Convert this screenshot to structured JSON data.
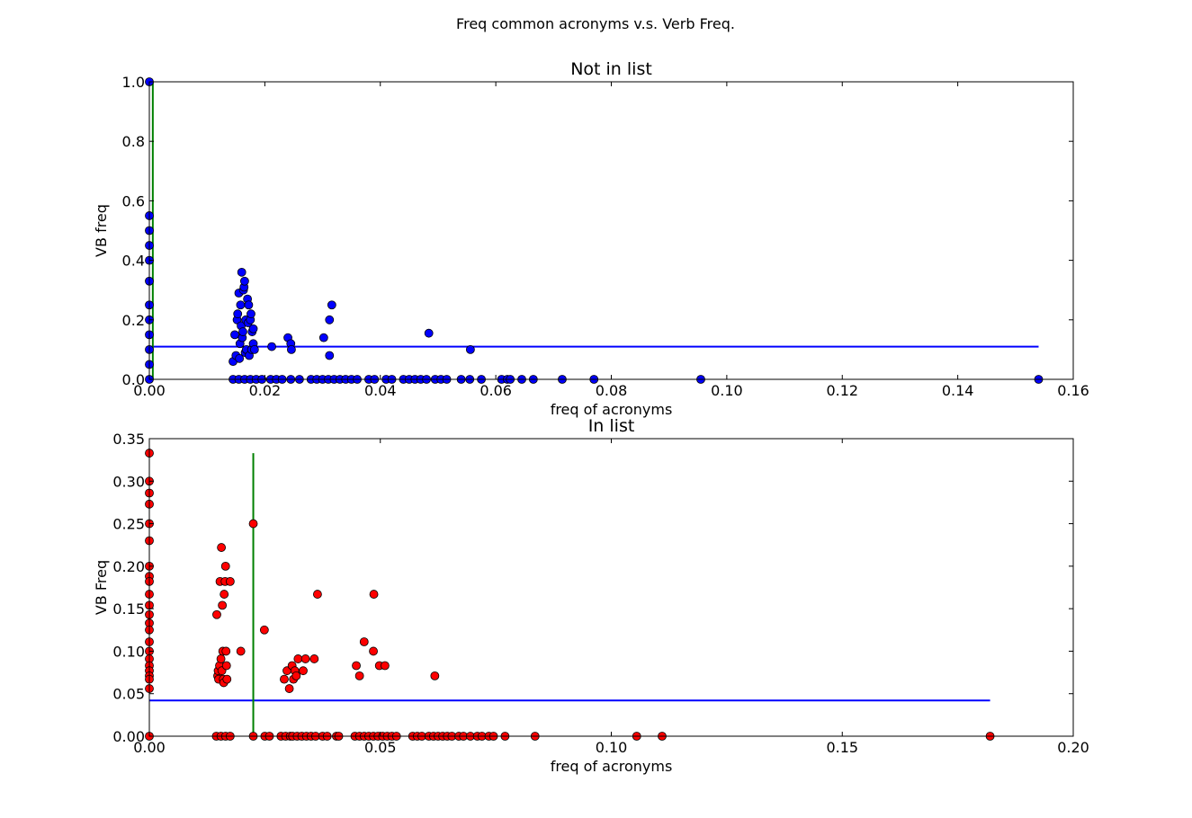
{
  "figure": {
    "suptitle": "Freq common acronyms v.s. Verb Freq."
  },
  "chart_data": [
    {
      "type": "scatter",
      "title": "Not in list",
      "xlabel": "freq of acronyms",
      "ylabel": "VB freq",
      "xlim": [
        0,
        0.16
      ],
      "ylim": [
        0,
        1.0
      ],
      "xticks": [
        "0.00",
        "0.02",
        "0.04",
        "0.06",
        "0.08",
        "0.10",
        "0.12",
        "0.14",
        "0.16"
      ],
      "yticks": [
        "0.0",
        "0.2",
        "0.4",
        "0.6",
        "0.8",
        "1.0"
      ],
      "grid": false,
      "marker_color": "#0000ff",
      "mean_line": {
        "color": "#0000ff",
        "y": 0.11,
        "x": [
          0.0,
          0.154
        ]
      },
      "vertical_line": {
        "color": "#008000",
        "x": 0.0006,
        "y": [
          0.0,
          1.0
        ]
      },
      "points": [
        [
          0.0,
          1.0
        ],
        [
          0.0,
          0.55
        ],
        [
          0.0,
          0.5
        ],
        [
          0.0,
          0.45
        ],
        [
          0.0,
          0.4
        ],
        [
          0.0,
          0.33
        ],
        [
          0.0,
          0.25
        ],
        [
          0.0,
          0.2
        ],
        [
          0.0,
          0.15
        ],
        [
          0.0,
          0.1
        ],
        [
          0.0,
          0.05
        ],
        [
          0.0,
          0.0
        ],
        [
          0.0145,
          0.06
        ],
        [
          0.0148,
          0.15
        ],
        [
          0.015,
          0.08
        ],
        [
          0.0152,
          0.2
        ],
        [
          0.0153,
          0.22
        ],
        [
          0.0155,
          0.29
        ],
        [
          0.0156,
          0.07
        ],
        [
          0.0157,
          0.12
        ],
        [
          0.0158,
          0.25
        ],
        [
          0.0159,
          0.18
        ],
        [
          0.016,
          0.36
        ],
        [
          0.0161,
          0.14
        ],
        [
          0.0162,
          0.16
        ],
        [
          0.0163,
          0.3
        ],
        [
          0.0164,
          0.31
        ],
        [
          0.0165,
          0.33
        ],
        [
          0.0166,
          0.09
        ],
        [
          0.0167,
          0.2
        ],
        [
          0.0168,
          0.1
        ],
        [
          0.017,
          0.27
        ],
        [
          0.0171,
          0.19
        ],
        [
          0.0172,
          0.25
        ],
        [
          0.0173,
          0.08
        ],
        [
          0.0175,
          0.2
        ],
        [
          0.0176,
          0.22
        ],
        [
          0.0177,
          0.1
        ],
        [
          0.0178,
          0.16
        ],
        [
          0.018,
          0.17
        ],
        [
          0.018,
          0.12
        ],
        [
          0.0182,
          0.1
        ],
        [
          0.0212,
          0.11
        ],
        [
          0.024,
          0.14
        ],
        [
          0.0245,
          0.12
        ],
        [
          0.0246,
          0.1
        ],
        [
          0.0302,
          0.14
        ],
        [
          0.0312,
          0.2
        ],
        [
          0.0312,
          0.08
        ],
        [
          0.0316,
          0.25
        ],
        [
          0.0484,
          0.155
        ],
        [
          0.0556,
          0.1
        ],
        [
          0.0145,
          0.0
        ],
        [
          0.0155,
          0.0
        ],
        [
          0.0165,
          0.0
        ],
        [
          0.0175,
          0.0
        ],
        [
          0.0185,
          0.0
        ],
        [
          0.0195,
          0.0
        ],
        [
          0.021,
          0.0
        ],
        [
          0.022,
          0.0
        ],
        [
          0.023,
          0.0
        ],
        [
          0.0245,
          0.0
        ],
        [
          0.026,
          0.0
        ],
        [
          0.028,
          0.0
        ],
        [
          0.029,
          0.0
        ],
        [
          0.03,
          0.0
        ],
        [
          0.031,
          0.0
        ],
        [
          0.032,
          0.0
        ],
        [
          0.033,
          0.0
        ],
        [
          0.034,
          0.0
        ],
        [
          0.035,
          0.0
        ],
        [
          0.036,
          0.0
        ],
        [
          0.038,
          0.0
        ],
        [
          0.039,
          0.0
        ],
        [
          0.041,
          0.0
        ],
        [
          0.042,
          0.0
        ],
        [
          0.044,
          0.0
        ],
        [
          0.045,
          0.0
        ],
        [
          0.046,
          0.0
        ],
        [
          0.047,
          0.0
        ],
        [
          0.048,
          0.0
        ],
        [
          0.0495,
          0.0
        ],
        [
          0.0505,
          0.0
        ],
        [
          0.0515,
          0.0
        ],
        [
          0.054,
          0.0
        ],
        [
          0.0555,
          0.0
        ],
        [
          0.0575,
          0.0
        ],
        [
          0.061,
          0.0
        ],
        [
          0.062,
          0.0
        ],
        [
          0.0625,
          0.0
        ],
        [
          0.0645,
          0.0
        ],
        [
          0.0665,
          0.0
        ],
        [
          0.0715,
          0.0
        ],
        [
          0.077,
          0.0
        ],
        [
          0.0955,
          0.0
        ],
        [
          0.154,
          0.0
        ]
      ]
    },
    {
      "type": "scatter",
      "title": "In list",
      "xlabel": "freq of acronyms",
      "ylabel": "VB Freq",
      "xlim": [
        0,
        0.2
      ],
      "ylim": [
        0,
        0.35
      ],
      "xticks": [
        "0.00",
        "0.05",
        "0.10",
        "0.15",
        "0.20"
      ],
      "yticks": [
        "0.00",
        "0.05",
        "0.10",
        "0.15",
        "0.20",
        "0.25",
        "0.30",
        "0.35"
      ],
      "grid": false,
      "marker_color": "#ff0000",
      "mean_line": {
        "color": "#0000ff",
        "y": 0.042,
        "x": [
          0.0,
          0.182
        ]
      },
      "vertical_line": {
        "color": "#008000",
        "x": 0.0225,
        "y": [
          0.0,
          0.333
        ]
      },
      "points": [
        [
          0.0,
          0.333
        ],
        [
          0.0,
          0.3
        ],
        [
          0.0,
          0.286
        ],
        [
          0.0,
          0.273
        ],
        [
          0.0,
          0.25
        ],
        [
          0.0,
          0.23
        ],
        [
          0.0,
          0.2
        ],
        [
          0.0,
          0.188
        ],
        [
          0.0,
          0.182
        ],
        [
          0.0,
          0.167
        ],
        [
          0.0,
          0.154
        ],
        [
          0.0,
          0.143
        ],
        [
          0.0,
          0.133
        ],
        [
          0.0,
          0.125
        ],
        [
          0.0,
          0.111
        ],
        [
          0.0,
          0.1
        ],
        [
          0.0,
          0.091
        ],
        [
          0.0,
          0.083
        ],
        [
          0.0,
          0.077
        ],
        [
          0.0,
          0.071
        ],
        [
          0.0,
          0.067
        ],
        [
          0.0,
          0.056
        ],
        [
          0.0,
          0.0
        ],
        [
          0.0146,
          0.143
        ],
        [
          0.0148,
          0.071
        ],
        [
          0.0149,
          0.077
        ],
        [
          0.015,
          0.067
        ],
        [
          0.0152,
          0.083
        ],
        [
          0.0153,
          0.182
        ],
        [
          0.0155,
          0.091
        ],
        [
          0.0156,
          0.222
        ],
        [
          0.0157,
          0.077
        ],
        [
          0.0158,
          0.154
        ],
        [
          0.0159,
          0.1
        ],
        [
          0.016,
          0.067
        ],
        [
          0.0161,
          0.063
        ],
        [
          0.0162,
          0.167
        ],
        [
          0.0164,
          0.182
        ],
        [
          0.0165,
          0.2
        ],
        [
          0.0166,
          0.1
        ],
        [
          0.0167,
          0.083
        ],
        [
          0.0168,
          0.067
        ],
        [
          0.0175,
          0.182
        ],
        [
          0.0198,
          0.1
        ],
        [
          0.0225,
          0.25
        ],
        [
          0.0249,
          0.125
        ],
        [
          0.0292,
          0.067
        ],
        [
          0.0298,
          0.077
        ],
        [
          0.0303,
          0.056
        ],
        [
          0.0309,
          0.083
        ],
        [
          0.0312,
          0.067
        ],
        [
          0.0315,
          0.077
        ],
        [
          0.0318,
          0.071
        ],
        [
          0.0322,
          0.091
        ],
        [
          0.0333,
          0.077
        ],
        [
          0.0338,
          0.091
        ],
        [
          0.0357,
          0.091
        ],
        [
          0.0364,
          0.167
        ],
        [
          0.0448,
          0.083
        ],
        [
          0.0455,
          0.071
        ],
        [
          0.0465,
          0.111
        ],
        [
          0.0485,
          0.1
        ],
        [
          0.0486,
          0.167
        ],
        [
          0.0498,
          0.083
        ],
        [
          0.051,
          0.083
        ],
        [
          0.0618,
          0.071
        ],
        [
          0.0145,
          0.0
        ],
        [
          0.0155,
          0.0
        ],
        [
          0.0165,
          0.0
        ],
        [
          0.0175,
          0.0
        ],
        [
          0.0225,
          0.0
        ],
        [
          0.025,
          0.0
        ],
        [
          0.026,
          0.0
        ],
        [
          0.0285,
          0.0
        ],
        [
          0.0295,
          0.0
        ],
        [
          0.0305,
          0.0
        ],
        [
          0.031,
          0.0
        ],
        [
          0.032,
          0.0
        ],
        [
          0.033,
          0.0
        ],
        [
          0.034,
          0.0
        ],
        [
          0.035,
          0.0
        ],
        [
          0.036,
          0.0
        ],
        [
          0.0375,
          0.0
        ],
        [
          0.0385,
          0.0
        ],
        [
          0.0405,
          0.0
        ],
        [
          0.041,
          0.0
        ],
        [
          0.0445,
          0.0
        ],
        [
          0.0455,
          0.0
        ],
        [
          0.0465,
          0.0
        ],
        [
          0.0475,
          0.0
        ],
        [
          0.0485,
          0.0
        ],
        [
          0.0495,
          0.0
        ],
        [
          0.0505,
          0.0
        ],
        [
          0.0515,
          0.0
        ],
        [
          0.0525,
          0.0
        ],
        [
          0.0535,
          0.0
        ],
        [
          0.057,
          0.0
        ],
        [
          0.058,
          0.0
        ],
        [
          0.059,
          0.0
        ],
        [
          0.0605,
          0.0
        ],
        [
          0.0615,
          0.0
        ],
        [
          0.0625,
          0.0
        ],
        [
          0.0635,
          0.0
        ],
        [
          0.0645,
          0.0
        ],
        [
          0.0655,
          0.0
        ],
        [
          0.067,
          0.0
        ],
        [
          0.068,
          0.0
        ],
        [
          0.0695,
          0.0
        ],
        [
          0.071,
          0.0
        ],
        [
          0.072,
          0.0
        ],
        [
          0.0735,
          0.0
        ],
        [
          0.0745,
          0.0
        ],
        [
          0.077,
          0.0
        ],
        [
          0.0835,
          0.0
        ],
        [
          0.1055,
          0.0
        ],
        [
          0.111,
          0.0
        ],
        [
          0.182,
          0.0
        ]
      ]
    }
  ]
}
